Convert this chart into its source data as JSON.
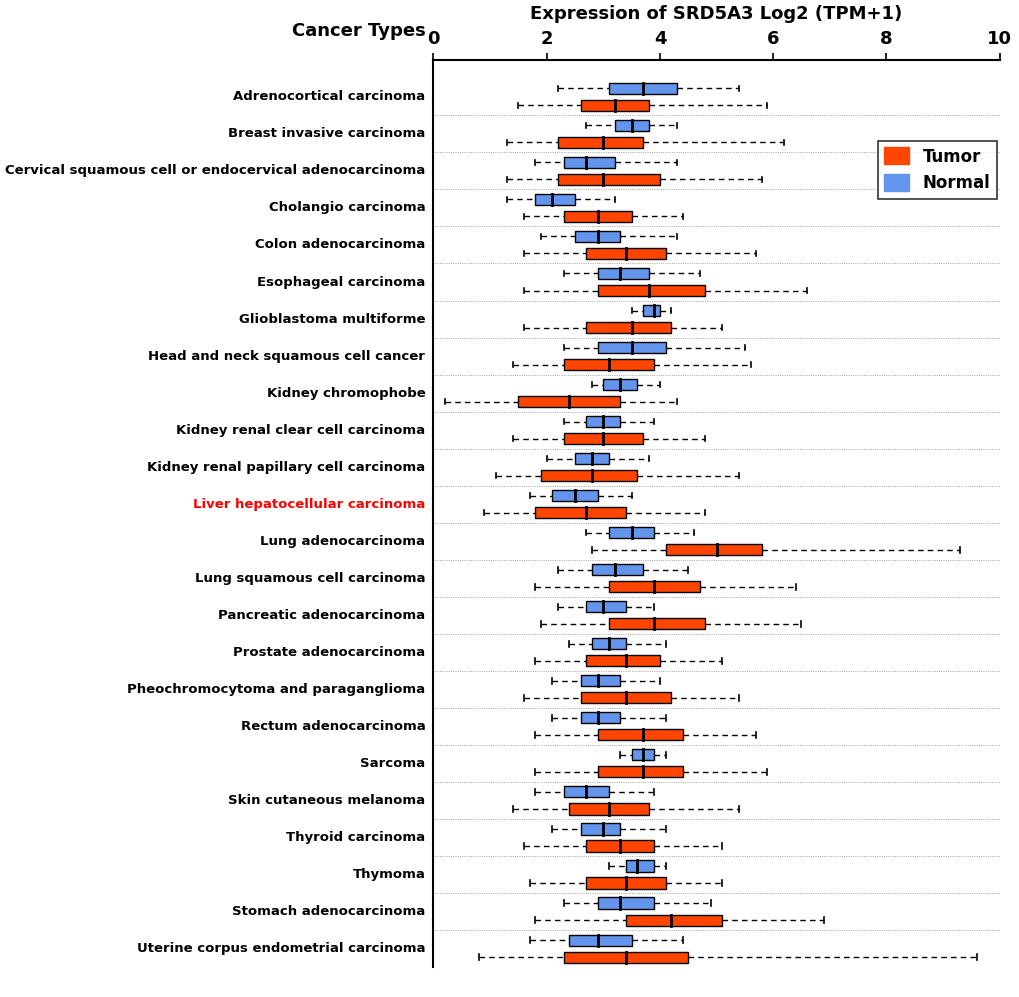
{
  "title_left": "Cancer Types",
  "title_right": "Expression of SRD5A3 Log2 (TPM+1)",
  "xlim": [
    0,
    10
  ],
  "xticks": [
    0,
    2,
    4,
    6,
    8,
    10
  ],
  "tumor_color": "#FF4500",
  "normal_color": "#6495ED",
  "cancer_types": [
    "Adrenocortical carcinoma",
    "Breast invasive carcinoma",
    "Cervical squamous cell or endocervical adenocarcinoma",
    "Cholangio carcinoma",
    "Colon adenocarcinoma",
    "Esophageal carcinoma",
    "Glioblastoma multiforme",
    "Head and neck squamous cell cancer",
    "Kidney chromophobe",
    "Kidney renal clear cell carcinoma",
    "Kidney renal papillary cell carcinoma",
    "Liver hepatocellular carcinoma",
    "Lung adenocarcinoma",
    "Lung squamous cell carcinoma",
    "Pancreatic adenocarcinoma",
    "Prostate adenocarcinoma",
    "Pheochromocytoma and paraganglioma",
    "Rectum adenocarcinoma",
    "Sarcoma",
    "Skin cutaneous melanoma",
    "Thyroid carcinoma",
    "Thymoma",
    "Stomach adenocarcinoma",
    "Uterine corpus endometrial carcinoma"
  ],
  "highlighted_cancer": "Liver hepatocellular carcinoma",
  "normal_boxes": [
    [
      2.2,
      3.1,
      3.7,
      4.3,
      5.4
    ],
    [
      2.7,
      3.2,
      3.5,
      3.8,
      4.3
    ],
    [
      1.8,
      2.3,
      2.7,
      3.2,
      4.3
    ],
    [
      1.3,
      1.8,
      2.1,
      2.5,
      3.2
    ],
    [
      1.9,
      2.5,
      2.9,
      3.3,
      4.3
    ],
    [
      2.3,
      2.9,
      3.3,
      3.8,
      4.7
    ],
    [
      3.5,
      3.7,
      3.9,
      4.0,
      4.2
    ],
    [
      2.3,
      2.9,
      3.5,
      4.1,
      5.5
    ],
    [
      2.8,
      3.0,
      3.3,
      3.6,
      4.0
    ],
    [
      2.3,
      2.7,
      3.0,
      3.3,
      3.9
    ],
    [
      2.0,
      2.5,
      2.8,
      3.1,
      3.8
    ],
    [
      1.7,
      2.1,
      2.5,
      2.9,
      3.5
    ],
    [
      2.7,
      3.1,
      3.5,
      3.9,
      4.6
    ],
    [
      2.2,
      2.8,
      3.2,
      3.7,
      4.5
    ],
    [
      2.2,
      2.7,
      3.0,
      3.4,
      3.9
    ],
    [
      2.4,
      2.8,
      3.1,
      3.4,
      4.1
    ],
    [
      2.1,
      2.6,
      2.9,
      3.3,
      4.0
    ],
    [
      2.1,
      2.6,
      2.9,
      3.3,
      4.1
    ],
    [
      3.3,
      3.5,
      3.7,
      3.9,
      4.1
    ],
    [
      1.8,
      2.3,
      2.7,
      3.1,
      3.9
    ],
    [
      2.1,
      2.6,
      3.0,
      3.3,
      4.1
    ],
    [
      3.1,
      3.4,
      3.6,
      3.9,
      4.1
    ],
    [
      2.3,
      2.9,
      3.3,
      3.9,
      4.9
    ],
    [
      1.7,
      2.4,
      2.9,
      3.5,
      4.4
    ]
  ],
  "tumor_boxes": [
    [
      1.5,
      2.6,
      3.2,
      3.8,
      5.9
    ],
    [
      1.3,
      2.2,
      3.0,
      3.7,
      6.2
    ],
    [
      1.3,
      2.2,
      3.0,
      4.0,
      5.8
    ],
    [
      1.6,
      2.3,
      2.9,
      3.5,
      4.4
    ],
    [
      1.6,
      2.7,
      3.4,
      4.1,
      5.7
    ],
    [
      1.6,
      2.9,
      3.8,
      4.8,
      6.6
    ],
    [
      1.6,
      2.7,
      3.5,
      4.2,
      5.1
    ],
    [
      1.4,
      2.3,
      3.1,
      3.9,
      5.6
    ],
    [
      0.2,
      1.5,
      2.4,
      3.3,
      4.3
    ],
    [
      1.4,
      2.3,
      3.0,
      3.7,
      4.8
    ],
    [
      1.1,
      1.9,
      2.8,
      3.6,
      5.4
    ],
    [
      0.9,
      1.8,
      2.7,
      3.4,
      4.8
    ],
    [
      2.8,
      4.1,
      5.0,
      5.8,
      9.3
    ],
    [
      1.8,
      3.1,
      3.9,
      4.7,
      6.4
    ],
    [
      1.9,
      3.1,
      3.9,
      4.8,
      6.5
    ],
    [
      1.8,
      2.7,
      3.4,
      4.0,
      5.1
    ],
    [
      1.6,
      2.6,
      3.4,
      4.2,
      5.4
    ],
    [
      1.8,
      2.9,
      3.7,
      4.4,
      5.7
    ],
    [
      1.8,
      2.9,
      3.7,
      4.4,
      5.9
    ],
    [
      1.4,
      2.4,
      3.1,
      3.8,
      5.4
    ],
    [
      1.6,
      2.7,
      3.3,
      3.9,
      5.1
    ],
    [
      1.7,
      2.7,
      3.4,
      4.1,
      5.1
    ],
    [
      1.8,
      3.4,
      4.2,
      5.1,
      6.9
    ],
    [
      0.8,
      2.3,
      3.4,
      4.5,
      9.6
    ]
  ]
}
